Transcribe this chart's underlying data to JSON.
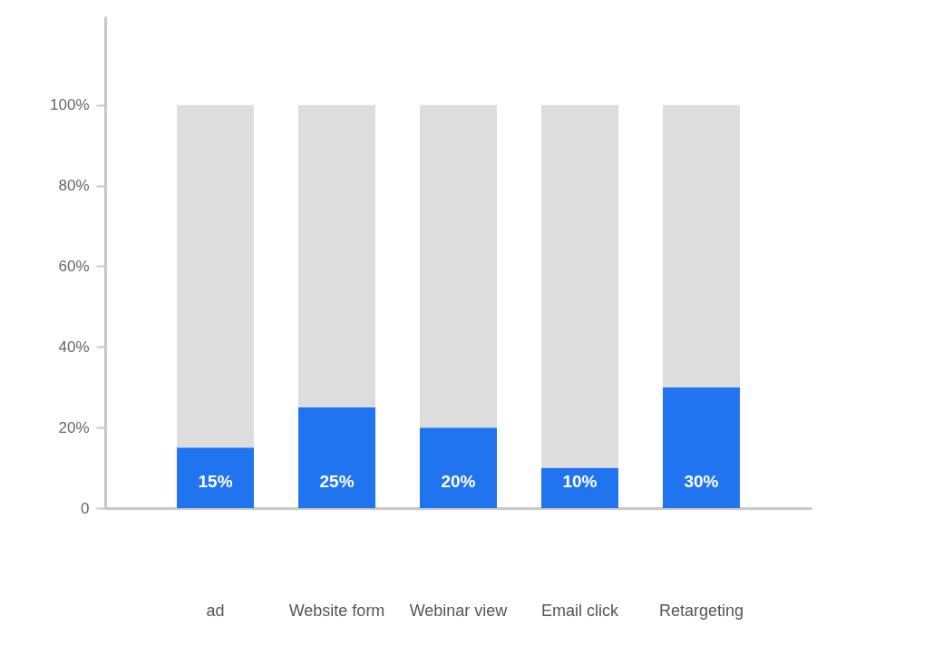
{
  "chart_data": {
    "type": "bar",
    "categories": [
      "ad",
      "Website form",
      "Webinar view",
      "Email click",
      "Retargeting"
    ],
    "stacked": true,
    "series": [
      {
        "color": "#2174f0",
        "values": [
          15,
          25,
          20,
          10,
          30
        ],
        "value_labels": [
          "15%",
          "25%",
          "20%",
          "10%",
          "30%"
        ]
      },
      {
        "color": "#dddddd",
        "values": [
          85,
          75,
          80,
          90,
          70
        ]
      }
    ],
    "ylim": [
      0,
      122
    ],
    "yticks": [
      {
        "value": 0,
        "label": "0"
      },
      {
        "value": 20,
        "label": "20%"
      },
      {
        "value": 40,
        "label": "40%"
      },
      {
        "value": 60,
        "label": "60%"
      },
      {
        "value": 80,
        "label": "80%"
      },
      {
        "value": 100,
        "label": "100%"
      }
    ],
    "grid": false
  }
}
